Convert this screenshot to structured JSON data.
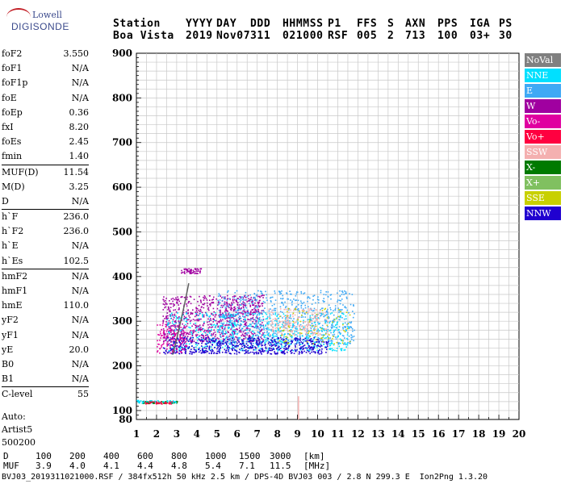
{
  "logo": {
    "line1": "Lowell",
    "line2": "DIGISONDE"
  },
  "header": {
    "labels": [
      "Station",
      "YYYY",
      "DAY",
      "DDD",
      "HHMMSS",
      "P1",
      "FFS",
      "S",
      "AXN",
      "PPS",
      "IGA",
      "PS"
    ],
    "values": [
      "Boa Vista",
      "2019",
      "Nov07",
      "311",
      "021000",
      "RSF",
      "005",
      "2",
      "713",
      "100",
      "03+",
      "30"
    ]
  },
  "params": [
    {
      "k": "foF2",
      "v": "3.550"
    },
    {
      "k": "foF1",
      "v": "N/A"
    },
    {
      "k": "foF1p",
      "v": "N/A"
    },
    {
      "k": "foE",
      "v": "N/A"
    },
    {
      "k": "foEp",
      "v": "0.36"
    },
    {
      "k": "fxI",
      "v": "8.20"
    },
    {
      "k": "foEs",
      "v": "2.45"
    },
    {
      "k": "fmin",
      "v": "1.40"
    },
    {
      "k": "MUF(D)",
      "v": "11.54",
      "sep": true
    },
    {
      "k": "M(D)",
      "v": "3.25"
    },
    {
      "k": "D",
      "v": "N/A"
    },
    {
      "k": "h`F",
      "v": "236.0",
      "sep": true
    },
    {
      "k": "h`F2",
      "v": "236.0"
    },
    {
      "k": "h`E",
      "v": "N/A"
    },
    {
      "k": "h`Es",
      "v": "102.5"
    },
    {
      "k": "hmF2",
      "v": "N/A",
      "sep": true
    },
    {
      "k": "hmF1",
      "v": "N/A"
    },
    {
      "k": "hmE",
      "v": "110.0"
    },
    {
      "k": "yF2",
      "v": "N/A"
    },
    {
      "k": "yF1",
      "v": "N/A"
    },
    {
      "k": "yE",
      "v": "20.0"
    },
    {
      "k": "B0",
      "v": "N/A"
    },
    {
      "k": "B1",
      "v": "N/A"
    },
    {
      "k": "C-level",
      "v": "55",
      "sep": true
    }
  ],
  "auto": {
    "l1": "Auto:",
    "l2": "Artist5",
    "l3": "500200"
  },
  "legend": [
    {
      "label": "NoVal",
      "color": "#808080"
    },
    {
      "label": "NNE",
      "color": "#00e0ff"
    },
    {
      "label": "E",
      "color": "#3fa9f5"
    },
    {
      "label": "W",
      "color": "#a000a0"
    },
    {
      "label": "Vo-",
      "color": "#e000a0"
    },
    {
      "label": "Vo+",
      "color": "#ff0040"
    },
    {
      "label": "SSW",
      "color": "#f4b0b0"
    },
    {
      "label": "X-",
      "color": "#007a00"
    },
    {
      "label": "X+",
      "color": "#80c060"
    },
    {
      "label": "SSE",
      "color": "#c8d000"
    },
    {
      "label": "NNW",
      "color": "#2000d0"
    }
  ],
  "bottom": {
    "d_label": "D",
    "d_vals": [
      "100",
      "200",
      "400",
      "600",
      "800",
      "1000",
      "1500",
      "3000",
      "[km]"
    ],
    "muf_label": "MUF",
    "muf_vals": [
      "3.9",
      "4.0",
      "4.1",
      "4.4",
      "4.8",
      "5.4",
      "7.1",
      "11.5",
      "[MHz]"
    ]
  },
  "footer": "BVJ03_2019311021000.RSF / 384fx512h 50 kHz 2.5 km / DPS-4D BVJ03 003 / 2.8 N 299.3 E  Ion2Png 1.3.20",
  "chart_data": {
    "type": "scatter",
    "xlim": [
      1,
      20
    ],
    "ylim": [
      80,
      900
    ],
    "x_ticks": [
      1,
      2,
      3,
      4,
      5,
      6,
      7,
      8,
      9,
      10,
      11,
      12,
      13,
      14,
      15,
      16,
      17,
      18,
      19,
      20
    ],
    "y_ticks": [
      100,
      200,
      300,
      400,
      500,
      600,
      700,
      800,
      900
    ],
    "grid": true,
    "clusters": [
      {
        "series": "W",
        "color": "#a000a0",
        "x": [
          2.3,
          7.3
        ],
        "y": [
          255,
          360
        ],
        "n": 900
      },
      {
        "series": "W",
        "color": "#a000a0",
        "x": [
          3.2,
          4.2
        ],
        "y": [
          408,
          420
        ],
        "n": 60
      },
      {
        "series": "E",
        "color": "#3fa9f5",
        "x": [
          5.0,
          11.8
        ],
        "y": [
          250,
          370
        ],
        "n": 800
      },
      {
        "series": "NNE",
        "color": "#00e0ff",
        "x": [
          2.5,
          11.5
        ],
        "y": [
          235,
          320
        ],
        "n": 600
      },
      {
        "series": "NNW",
        "color": "#2000d0",
        "x": [
          2.3,
          10.5
        ],
        "y": [
          228,
          265
        ],
        "n": 600
      },
      {
        "series": "SSW",
        "color": "#f4b0b0",
        "x": [
          7.5,
          10.5
        ],
        "y": [
          270,
          330
        ],
        "n": 200
      },
      {
        "series": "Vo-",
        "color": "#e000a0",
        "x": [
          2.0,
          3.5
        ],
        "y": [
          230,
          300
        ],
        "n": 120
      },
      {
        "series": "SSE",
        "color": "#c8d000",
        "x": [
          8.0,
          11.6
        ],
        "y": [
          250,
          330
        ],
        "n": 80
      },
      {
        "series": "X-",
        "color": "#007a00",
        "x": [
          1.2,
          3.0
        ],
        "y": [
          117,
          122
        ],
        "n": 60
      },
      {
        "series": "NNE",
        "color": "#00e0ff",
        "x": [
          1.0,
          3.0
        ],
        "y": [
          118,
          124
        ],
        "n": 50
      },
      {
        "series": "Vo+",
        "color": "#ff0040",
        "x": [
          1.4,
          2.8
        ],
        "y": [
          116,
          122
        ],
        "n": 40
      }
    ],
    "traces": [
      {
        "color": "#606060",
        "points": [
          [
            2.8,
            225
          ],
          [
            3.0,
            260
          ],
          [
            3.2,
            300
          ],
          [
            3.4,
            340
          ],
          [
            3.6,
            385
          ]
        ]
      },
      {
        "color": "#f4b0b0",
        "points": [
          [
            9.05,
            80
          ],
          [
            9.05,
            132
          ]
        ]
      }
    ]
  }
}
